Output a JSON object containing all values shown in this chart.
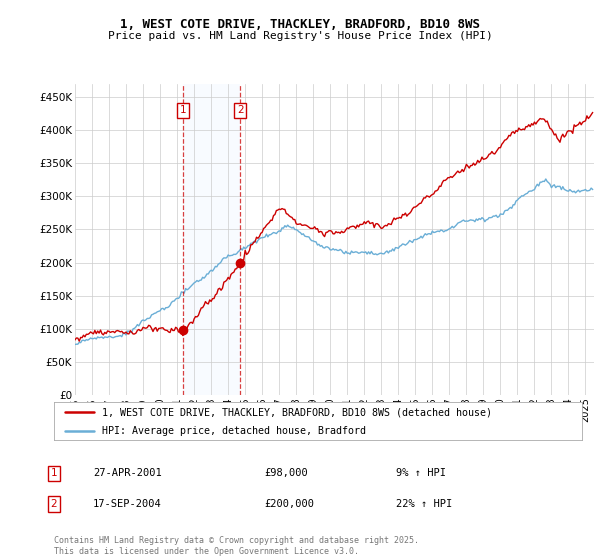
{
  "title": "1, WEST COTE DRIVE, THACKLEY, BRADFORD, BD10 8WS",
  "subtitle": "Price paid vs. HM Land Registry's House Price Index (HPI)",
  "legend_line1": "1, WEST COTE DRIVE, THACKLEY, BRADFORD, BD10 8WS (detached house)",
  "legend_line2": "HPI: Average price, detached house, Bradford",
  "sale1_date": "27-APR-2001",
  "sale1_price": 98000,
  "sale1_hpi": "9% ↑ HPI",
  "sale2_date": "17-SEP-2004",
  "sale2_price": 200000,
  "sale2_hpi": "22% ↑ HPI",
  "sale1_year": 2001.33,
  "sale2_year": 2004.72,
  "hpi_color": "#6aaed6",
  "price_color": "#cc0000",
  "background_color": "#ffffff",
  "grid_color": "#cccccc",
  "shaded_color": "#ddeeff",
  "footer": "Contains HM Land Registry data © Crown copyright and database right 2025.\nThis data is licensed under the Open Government Licence v3.0.",
  "ylim": [
    0,
    470000
  ],
  "ytick_vals": [
    0,
    50000,
    100000,
    150000,
    200000,
    250000,
    300000,
    350000,
    400000,
    450000
  ],
  "ytick_labels": [
    "£0",
    "£50K",
    "£100K",
    "£150K",
    "£200K",
    "£250K",
    "£300K",
    "£350K",
    "£400K",
    "£450K"
  ],
  "xlim_start": 1995.0,
  "xlim_end": 2025.5
}
